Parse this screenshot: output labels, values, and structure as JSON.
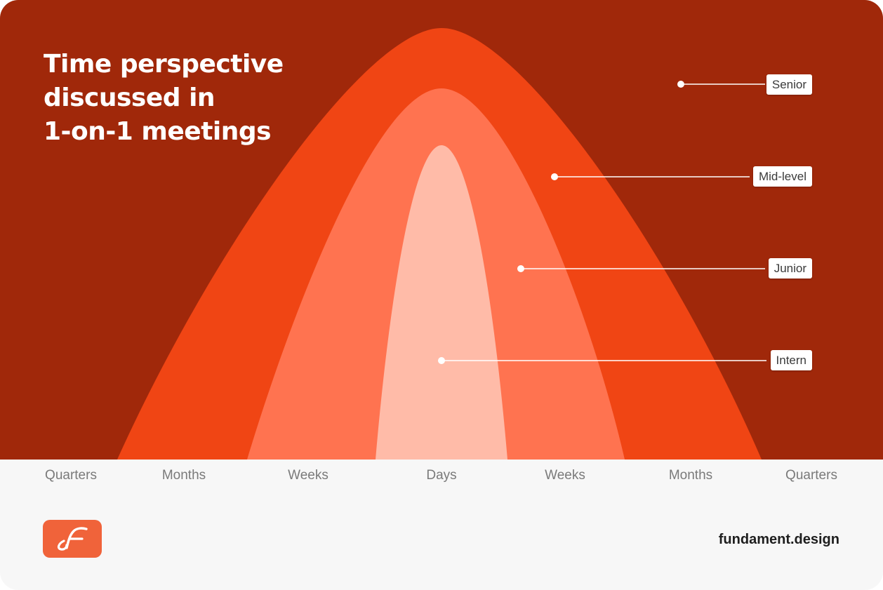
{
  "title": [
    "Time perspective",
    "discussed in",
    "1-on-1 meetings"
  ],
  "layers": [
    {
      "key": "senior",
      "label": "Senior",
      "color": "#a0280a"
    },
    {
      "key": "mid",
      "label": "Mid-level",
      "color": "#f04514"
    },
    {
      "key": "junior",
      "label": "Junior",
      "color": "#ff7350"
    },
    {
      "key": "intern",
      "label": "Intern",
      "color": "#ffbba8"
    }
  ],
  "axis": [
    "Quarters",
    "Months",
    "Weeks",
    "Days",
    "Weeks",
    "Months",
    "Quarters"
  ],
  "brand": "fundament.design",
  "logo": {
    "name": "fundament-logo",
    "color": "#f0633a"
  }
}
